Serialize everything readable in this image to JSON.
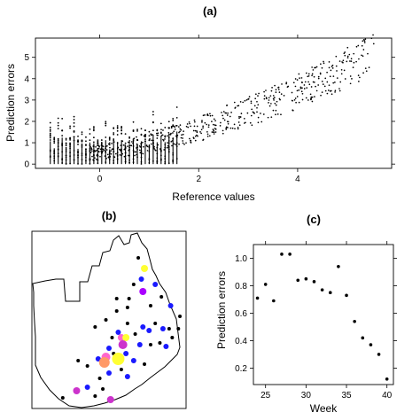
{
  "chart_data": [
    {
      "panel_label": "(a)",
      "type": "scatter",
      "xlabel": "Reference values",
      "ylabel": "Prediction errors",
      "xlim": [
        -1.3,
        5.9
      ],
      "ylim": [
        -0.2,
        5.9
      ],
      "xticks": [
        "0",
        "2",
        "4"
      ],
      "yticks": [
        "0",
        "1",
        "2",
        "3",
        "4",
        "5"
      ],
      "xtick_values": [
        0,
        2,
        4
      ],
      "ytick_values": [
        0,
        1,
        2,
        3,
        4,
        5
      ],
      "grid": false,
      "trend": {
        "x": [
          -1.0,
          0.0,
          1.0,
          2.0,
          3.0,
          4.0,
          5.0,
          5.5
        ],
        "y": [
          0.4,
          0.55,
          0.95,
          1.65,
          2.45,
          3.4,
          4.5,
          5.1
        ]
      }
    },
    {
      "panel_label": "(b)",
      "type": "map",
      "points": [
        {
          "x": 0.72,
          "y": 0.66,
          "color": "#aa00ff",
          "size": 4
        },
        {
          "x": 0.73,
          "y": 0.79,
          "color": "#ffff33",
          "size": 4
        },
        {
          "x": 0.71,
          "y": 0.73,
          "color": "#1a1aff",
          "size": 3
        },
        {
          "x": 0.69,
          "y": 0.85,
          "color": "#000000",
          "size": 2
        },
        {
          "x": 0.77,
          "y": 0.58,
          "color": "#000000",
          "size": 2
        },
        {
          "x": 0.8,
          "y": 0.7,
          "color": "#1a1aff",
          "size": 3
        },
        {
          "x": 0.84,
          "y": 0.63,
          "color": "#000000",
          "size": 2
        },
        {
          "x": 0.9,
          "y": 0.58,
          "color": "#1a1aff",
          "size": 3
        },
        {
          "x": 0.96,
          "y": 0.52,
          "color": "#000000",
          "size": 2
        },
        {
          "x": 0.62,
          "y": 0.57,
          "color": "#000000",
          "size": 2
        },
        {
          "x": 0.55,
          "y": 0.55,
          "color": "#000000",
          "size": 2
        },
        {
          "x": 0.62,
          "y": 0.48,
          "color": "#000000",
          "size": 2
        },
        {
          "x": 0.56,
          "y": 0.43,
          "color": "#1a1aff",
          "size": 3
        },
        {
          "x": 0.58,
          "y": 0.4,
          "color": "#ff66cc",
          "size": 4
        },
        {
          "x": 0.61,
          "y": 0.4,
          "color": "#ffff33",
          "size": 4
        },
        {
          "x": 0.59,
          "y": 0.36,
          "color": "#cc33cc",
          "size": 5
        },
        {
          "x": 0.67,
          "y": 0.42,
          "color": "#000000",
          "size": 2
        },
        {
          "x": 0.72,
          "y": 0.46,
          "color": "#1a1aff",
          "size": 3
        },
        {
          "x": 0.76,
          "y": 0.44,
          "color": "#1a1aff",
          "size": 3
        },
        {
          "x": 0.8,
          "y": 0.48,
          "color": "#000000",
          "size": 2
        },
        {
          "x": 0.85,
          "y": 0.45,
          "color": "#1a1aff",
          "size": 3
        },
        {
          "x": 0.89,
          "y": 0.45,
          "color": "#000000",
          "size": 2
        },
        {
          "x": 0.7,
          "y": 0.36,
          "color": "#1a1aff",
          "size": 3
        },
        {
          "x": 0.77,
          "y": 0.36,
          "color": "#000000",
          "size": 2
        },
        {
          "x": 0.83,
          "y": 0.37,
          "color": "#000000",
          "size": 2
        },
        {
          "x": 0.87,
          "y": 0.35,
          "color": "#1a1aff",
          "size": 3
        },
        {
          "x": 0.91,
          "y": 0.4,
          "color": "#000000",
          "size": 2
        },
        {
          "x": 0.5,
          "y": 0.34,
          "color": "#1a1aff",
          "size": 3
        },
        {
          "x": 0.53,
          "y": 0.31,
          "color": "#000000",
          "size": 2
        },
        {
          "x": 0.43,
          "y": 0.28,
          "color": "#1a1aff",
          "size": 3
        },
        {
          "x": 0.48,
          "y": 0.29,
          "color": "#ff66cc",
          "size": 5
        },
        {
          "x": 0.47,
          "y": 0.26,
          "color": "#ff9966",
          "size": 6
        },
        {
          "x": 0.56,
          "y": 0.28,
          "color": "#ffff33",
          "size": 7
        },
        {
          "x": 0.61,
          "y": 0.31,
          "color": "#1a1aff",
          "size": 3
        },
        {
          "x": 0.66,
          "y": 0.27,
          "color": "#1a1aff",
          "size": 3
        },
        {
          "x": 0.73,
          "y": 0.25,
          "color": "#000000",
          "size": 2
        },
        {
          "x": 0.58,
          "y": 0.22,
          "color": "#000000",
          "size": 2
        },
        {
          "x": 0.5,
          "y": 0.2,
          "color": "#1a1aff",
          "size": 3
        },
        {
          "x": 0.62,
          "y": 0.18,
          "color": "#1a1aff",
          "size": 3
        },
        {
          "x": 0.44,
          "y": 0.17,
          "color": "#000000",
          "size": 2
        },
        {
          "x": 0.36,
          "y": 0.24,
          "color": "#000000",
          "size": 2
        },
        {
          "x": 0.3,
          "y": 0.27,
          "color": "#000000",
          "size": 2
        },
        {
          "x": 0.36,
          "y": 0.12,
          "color": "#1a1aff",
          "size": 3
        },
        {
          "x": 0.46,
          "y": 0.11,
          "color": "#000000",
          "size": 2
        },
        {
          "x": 0.29,
          "y": 0.1,
          "color": "#cc33cc",
          "size": 4
        },
        {
          "x": 0.41,
          "y": 0.07,
          "color": "#000000",
          "size": 2
        },
        {
          "x": 0.51,
          "y": 0.05,
          "color": "#cc33cc",
          "size": 4
        },
        {
          "x": 0.2,
          "y": 0.06,
          "color": "#000000",
          "size": 2
        },
        {
          "x": 0.41,
          "y": 0.46,
          "color": "#000000",
          "size": 2
        },
        {
          "x": 0.48,
          "y": 0.5,
          "color": "#000000",
          "size": 2
        },
        {
          "x": 0.63,
          "y": 0.62,
          "color": "#000000",
          "size": 2
        },
        {
          "x": 0.66,
          "y": 0.7,
          "color": "#000000",
          "size": 2
        },
        {
          "x": 0.55,
          "y": 0.62,
          "color": "#000000",
          "size": 2
        },
        {
          "x": 0.52,
          "y": 0.4,
          "color": "#000000",
          "size": 2
        },
        {
          "x": 0.95,
          "y": 0.45,
          "color": "#000000",
          "size": 2
        }
      ]
    },
    {
      "panel_label": "(c)",
      "type": "scatter",
      "xlabel": "Week",
      "ylabel": "Prediction errors",
      "xlim": [
        23.5,
        40.8
      ],
      "ylim": [
        0.08,
        1.1
      ],
      "xticks": [
        "25",
        "30",
        "35",
        "40"
      ],
      "yticks": [
        "0.2",
        "0.4",
        "0.6",
        "0.8",
        "1.0"
      ],
      "xtick_values": [
        25,
        30,
        35,
        40
      ],
      "ytick_values": [
        0.2,
        0.4,
        0.6,
        0.8,
        1.0
      ],
      "grid": false,
      "x": [
        24,
        25,
        26,
        27,
        28,
        29,
        30,
        31,
        32,
        33,
        34,
        35,
        36,
        37,
        38,
        39,
        40
      ],
      "y": [
        0.71,
        0.81,
        0.69,
        1.03,
        1.03,
        0.84,
        0.85,
        0.83,
        0.77,
        0.75,
        0.94,
        0.73,
        0.54,
        0.42,
        0.37,
        0.3,
        0.12
      ]
    }
  ]
}
